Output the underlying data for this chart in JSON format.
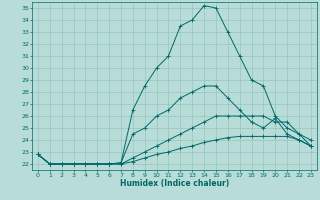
{
  "title": "",
  "xlabel": "Humidex (Indice chaleur)",
  "bg_color": "#b8ddd8",
  "grid_color": "#90c0b8",
  "line_color": "#006868",
  "xlim": [
    -0.5,
    23.5
  ],
  "ylim": [
    21.5,
    35.5
  ],
  "yticks": [
    22,
    23,
    24,
    25,
    26,
    27,
    28,
    29,
    30,
    31,
    32,
    33,
    34,
    35
  ],
  "xticks": [
    0,
    1,
    2,
    3,
    4,
    5,
    6,
    7,
    8,
    9,
    10,
    11,
    12,
    13,
    14,
    15,
    16,
    17,
    18,
    19,
    20,
    21,
    22,
    23
  ],
  "series": [
    [
      22.8,
      22.0,
      22.0,
      22.0,
      22.0,
      22.0,
      22.0,
      22.1,
      26.5,
      28.5,
      30.0,
      31.0,
      33.5,
      34.0,
      35.2,
      35.0,
      33.0,
      31.0,
      29.0,
      28.5,
      26.0,
      25.0,
      24.5,
      24.0
    ],
    [
      22.8,
      22.0,
      22.0,
      22.0,
      22.0,
      22.0,
      22.0,
      22.1,
      24.5,
      25.0,
      26.0,
      26.5,
      27.5,
      28.0,
      28.5,
      28.5,
      27.5,
      26.5,
      25.5,
      25.0,
      25.8,
      24.5,
      24.0,
      23.5
    ],
    [
      22.8,
      22.0,
      22.0,
      22.0,
      22.0,
      22.0,
      22.0,
      22.0,
      22.5,
      23.0,
      23.5,
      24.0,
      24.5,
      25.0,
      25.5,
      26.0,
      26.0,
      26.0,
      26.0,
      26.0,
      25.5,
      25.5,
      24.5,
      23.5
    ],
    [
      22.8,
      22.0,
      22.0,
      22.0,
      22.0,
      22.0,
      22.0,
      22.0,
      22.2,
      22.5,
      22.8,
      23.0,
      23.3,
      23.5,
      23.8,
      24.0,
      24.2,
      24.3,
      24.3,
      24.3,
      24.3,
      24.3,
      24.0,
      23.5
    ]
  ]
}
